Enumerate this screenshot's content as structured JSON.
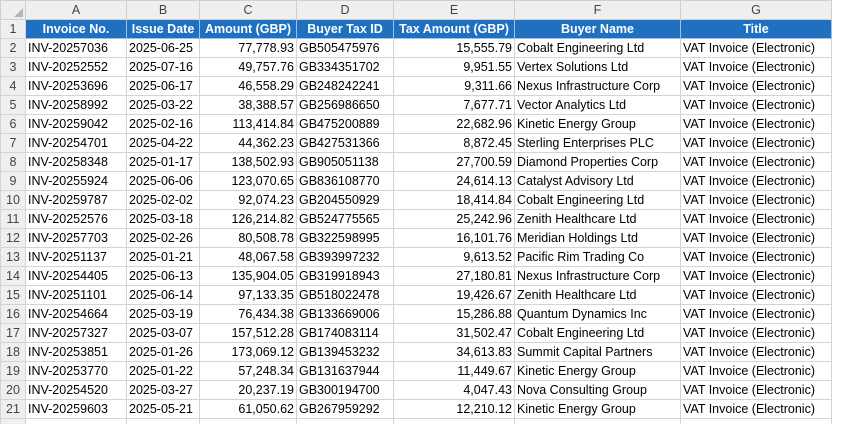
{
  "columns": [
    "A",
    "B",
    "C",
    "D",
    "E",
    "F",
    "G"
  ],
  "headers": [
    "Invoice No.",
    "Issue Date",
    "Amount (GBP)",
    "Buyer Tax ID",
    "Tax Amount (GBP)",
    "Buyer Name",
    "Title"
  ],
  "colors": {
    "header_fill": "#1f70c1",
    "header_text": "#ffffff",
    "gridline": "#d4d4d4",
    "headings_fill": "#efefef"
  },
  "rows": [
    {
      "num": "2",
      "invoice": "INV-20257036",
      "date": "2025-06-25",
      "amount": "77,778.93",
      "tax_id": "GB505475976",
      "tax": "15,555.79",
      "buyer": "Cobalt Engineering Ltd",
      "title": "VAT Invoice (Electronic)"
    },
    {
      "num": "3",
      "invoice": "INV-20252552",
      "date": "2025-07-16",
      "amount": "49,757.76",
      "tax_id": "GB334351702",
      "tax": "9,951.55",
      "buyer": "Vertex Solutions Ltd",
      "title": "VAT Invoice (Electronic)"
    },
    {
      "num": "4",
      "invoice": "INV-20253696",
      "date": "2025-06-17",
      "amount": "46,558.29",
      "tax_id": "GB248242241",
      "tax": "9,311.66",
      "buyer": "Nexus Infrastructure Corp",
      "title": "VAT Invoice (Electronic)"
    },
    {
      "num": "5",
      "invoice": "INV-20258992",
      "date": "2025-03-22",
      "amount": "38,388.57",
      "tax_id": "GB256986650",
      "tax": "7,677.71",
      "buyer": "Vector Analytics Ltd",
      "title": "VAT Invoice (Electronic)"
    },
    {
      "num": "6",
      "invoice": "INV-20259042",
      "date": "2025-02-16",
      "amount": "113,414.84",
      "tax_id": "GB475200889",
      "tax": "22,682.96",
      "buyer": "Kinetic Energy Group",
      "title": "VAT Invoice (Electronic)"
    },
    {
      "num": "7",
      "invoice": "INV-20254701",
      "date": "2025-04-22",
      "amount": "44,362.23",
      "tax_id": "GB427531366",
      "tax": "8,872.45",
      "buyer": "Sterling Enterprises PLC",
      "title": "VAT Invoice (Electronic)"
    },
    {
      "num": "8",
      "invoice": "INV-20258348",
      "date": "2025-01-17",
      "amount": "138,502.93",
      "tax_id": "GB905051138",
      "tax": "27,700.59",
      "buyer": "Diamond Properties Corp",
      "title": "VAT Invoice (Electronic)"
    },
    {
      "num": "9",
      "invoice": "INV-20255924",
      "date": "2025-06-06",
      "amount": "123,070.65",
      "tax_id": "GB836108770",
      "tax": "24,614.13",
      "buyer": "Catalyst Advisory Ltd",
      "title": "VAT Invoice (Electronic)"
    },
    {
      "num": "10",
      "invoice": "INV-20259787",
      "date": "2025-02-02",
      "amount": "92,074.23",
      "tax_id": "GB204550929",
      "tax": "18,414.84",
      "buyer": "Cobalt Engineering Ltd",
      "title": "VAT Invoice (Electronic)"
    },
    {
      "num": "11",
      "invoice": "INV-20252576",
      "date": "2025-03-18",
      "amount": "126,214.82",
      "tax_id": "GB524775565",
      "tax": "25,242.96",
      "buyer": "Zenith Healthcare Ltd",
      "title": "VAT Invoice (Electronic)"
    },
    {
      "num": "12",
      "invoice": "INV-20257703",
      "date": "2025-02-26",
      "amount": "80,508.78",
      "tax_id": "GB322598995",
      "tax": "16,101.76",
      "buyer": "Meridian Holdings Ltd",
      "title": "VAT Invoice (Electronic)"
    },
    {
      "num": "13",
      "invoice": "INV-20251137",
      "date": "2025-01-21",
      "amount": "48,067.58",
      "tax_id": "GB393997232",
      "tax": "9,613.52",
      "buyer": "Pacific Rim Trading Co",
      "title": "VAT Invoice (Electronic)"
    },
    {
      "num": "14",
      "invoice": "INV-20254405",
      "date": "2025-06-13",
      "amount": "135,904.05",
      "tax_id": "GB319918943",
      "tax": "27,180.81",
      "buyer": "Nexus Infrastructure Corp",
      "title": "VAT Invoice (Electronic)"
    },
    {
      "num": "15",
      "invoice": "INV-20251101",
      "date": "2025-06-14",
      "amount": "97,133.35",
      "tax_id": "GB518022478",
      "tax": "19,426.67",
      "buyer": "Zenith Healthcare Ltd",
      "title": "VAT Invoice (Electronic)"
    },
    {
      "num": "16",
      "invoice": "INV-20254664",
      "date": "2025-03-19",
      "amount": "76,434.38",
      "tax_id": "GB133669006",
      "tax": "15,286.88",
      "buyer": "Quantum Dynamics Inc",
      "title": "VAT Invoice (Electronic)"
    },
    {
      "num": "17",
      "invoice": "INV-20257327",
      "date": "2025-03-07",
      "amount": "157,512.28",
      "tax_id": "GB174083114",
      "tax": "31,502.47",
      "buyer": "Cobalt Engineering Ltd",
      "title": "VAT Invoice (Electronic)"
    },
    {
      "num": "18",
      "invoice": "INV-20253851",
      "date": "2025-01-26",
      "amount": "173,069.12",
      "tax_id": "GB139453232",
      "tax": "34,613.83",
      "buyer": "Summit Capital Partners",
      "title": "VAT Invoice (Electronic)"
    },
    {
      "num": "19",
      "invoice": "INV-20253770",
      "date": "2025-01-22",
      "amount": "57,248.34",
      "tax_id": "GB131637944",
      "tax": "11,449.67",
      "buyer": "Kinetic Energy Group",
      "title": "VAT Invoice (Electronic)"
    },
    {
      "num": "20",
      "invoice": "INV-20254520",
      "date": "2025-03-27",
      "amount": "20,237.19",
      "tax_id": "GB300194700",
      "tax": "4,047.43",
      "buyer": "Nova Consulting Group",
      "title": "VAT Invoice (Electronic)"
    },
    {
      "num": "21",
      "invoice": "INV-20259603",
      "date": "2025-05-21",
      "amount": "61,050.62",
      "tax_id": "GB267959292",
      "tax": "12,210.12",
      "buyer": "Kinetic Energy Group",
      "title": "VAT Invoice (Electronic)"
    }
  ]
}
